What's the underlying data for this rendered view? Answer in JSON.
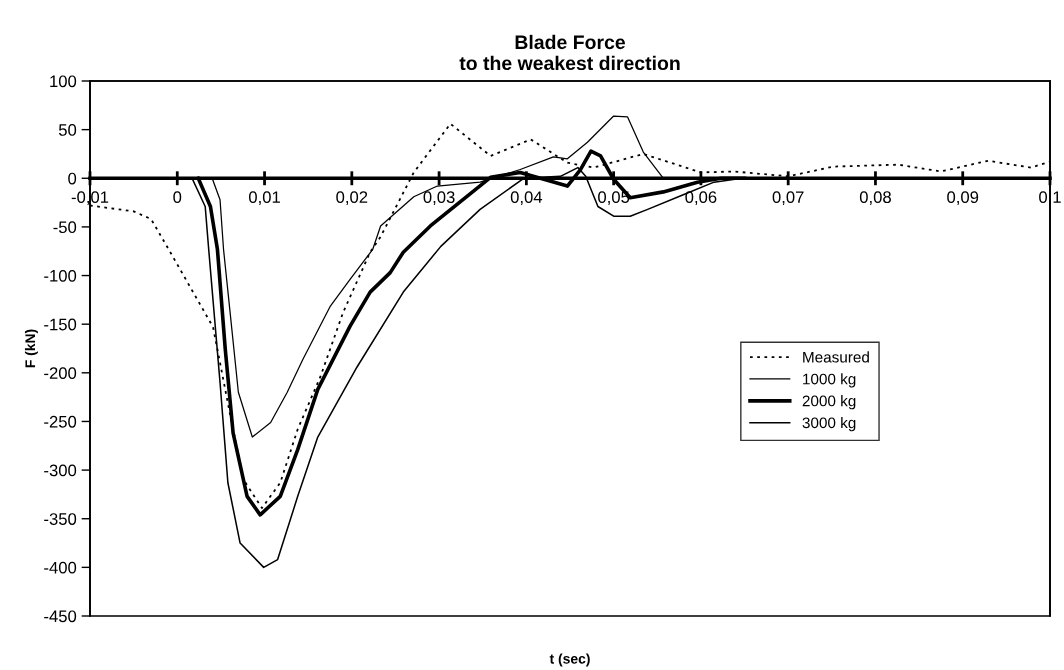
{
  "chart_data": {
    "type": "line",
    "title": "Blade Force\nto the weakest direction",
    "xlabel": "t (sec)",
    "ylabel": "F (kN)",
    "xlim": [
      -0.01,
      0.1
    ],
    "ylim": [
      -450,
      100
    ],
    "xticks": [
      {
        "value": -0.01,
        "label": "-0,01"
      },
      0,
      {
        "value": 0.01,
        "label": "0,01"
      },
      {
        "value": 0.02,
        "label": "0,02"
      },
      {
        "value": 0.03,
        "label": "0,03"
      },
      {
        "value": 0.04,
        "label": "0,04"
      },
      {
        "value": 0.05,
        "label": "0,05"
      },
      {
        "value": 0.06,
        "label": "0,06"
      },
      {
        "value": 0.07,
        "label": "0,07"
      },
      {
        "value": 0.08,
        "label": "0,08"
      },
      {
        "value": 0.09,
        "label": "0,09"
      },
      {
        "value": 0.1,
        "label": "0,1"
      }
    ],
    "yticks": [
      -450,
      -400,
      -350,
      -300,
      -250,
      -200,
      -150,
      -100,
      -50,
      0,
      50,
      100
    ],
    "grid": false,
    "legend": "right",
    "marker": "none",
    "series": [
      {
        "name": "Measured",
        "color": "#000000",
        "line_style": "dotted",
        "x": [
          -0.01,
          -0.005,
          -0.003,
          -0.0008,
          0.0041,
          0.0061,
          0.0076,
          0.0097,
          0.0118,
          0.0138,
          0.0164,
          0.019,
          0.0221,
          0.0233,
          0.0271,
          0.0313,
          0.0359,
          0.0405,
          0.0447,
          0.0477,
          0.0534,
          0.06,
          0.0638,
          0.07,
          0.0752,
          0.0826,
          0.0875,
          0.0929,
          0.0978,
          0.1
        ],
        "values": [
          -28,
          -34,
          -42,
          -76,
          -153,
          -245,
          -310,
          -339,
          -313,
          -258,
          -204,
          -138,
          -76,
          -60,
          6,
          56,
          23,
          40,
          16,
          11,
          25,
          6,
          7,
          2,
          12,
          14,
          7,
          18,
          11,
          17
        ]
      },
      {
        "name": "1000 kg",
        "color": "#000000",
        "line_style": "solid",
        "x": [
          0.004,
          0.0049,
          0.0053,
          0.0061,
          0.007,
          0.0086,
          0.0107,
          0.0126,
          0.0144,
          0.0175,
          0.0198,
          0.0224,
          0.0233,
          0.0271,
          0.0298,
          0.0347,
          0.0393,
          0.0431,
          0.0447,
          0.047,
          0.05,
          0.0516,
          0.0534,
          0.0557,
          0.065
        ],
        "values": [
          0,
          -22,
          -73,
          -142,
          -220,
          -266,
          -251,
          -220,
          -186,
          -132,
          -104,
          -73,
          -49,
          -19,
          -8,
          -4,
          9,
          22,
          20,
          37,
          64,
          63,
          27,
          0,
          0
        ]
      },
      {
        "name": "2000 kg",
        "color": "#000000",
        "line_style": "solid",
        "x": [
          0.0024,
          0.0038,
          0.0046,
          0.0055,
          0.0064,
          0.008,
          0.0095,
          0.0118,
          0.0138,
          0.0161,
          0.0198,
          0.0221,
          0.0244,
          0.0259,
          0.029,
          0.0359,
          0.0393,
          0.0447,
          0.0462,
          0.0474,
          0.0485,
          0.05,
          0.0519,
          0.0557,
          0.0596,
          0.0623,
          0.065
        ],
        "values": [
          0,
          -29,
          -73,
          -176,
          -262,
          -327,
          -346,
          -327,
          -279,
          -217,
          -152,
          -117,
          -97,
          -76,
          -49,
          1,
          6,
          -8,
          9,
          28,
          23,
          -1,
          -20,
          -14,
          -4,
          0,
          0
        ]
      },
      {
        "name": "3000 kg",
        "color": "#000000",
        "line_style": "solid",
        "x": [
          0.0017,
          0.0032,
          0.0036,
          0.0049,
          0.0058,
          0.0072,
          0.0099,
          0.0115,
          0.0138,
          0.0161,
          0.0206,
          0.0259,
          0.0302,
          0.0347,
          0.0397,
          0.0439,
          0.0459,
          0.0468,
          0.0482,
          0.05,
          0.0519,
          0.0539,
          0.0577,
          0.0615,
          0.0646
        ],
        "values": [
          0,
          -29,
          -73,
          -210,
          -313,
          -375,
          -400,
          -392,
          -327,
          -266,
          -194,
          -117,
          -70,
          -32,
          0,
          2,
          11,
          2,
          -29,
          -39,
          -39,
          -32,
          -18,
          -4,
          0
        ]
      }
    ]
  }
}
